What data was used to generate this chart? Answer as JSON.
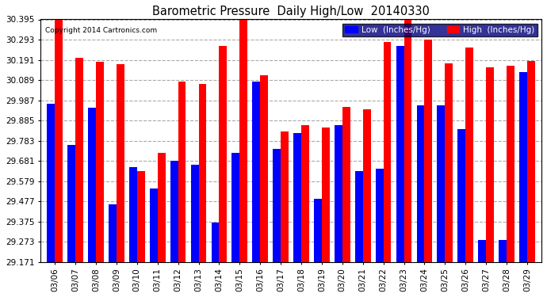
{
  "title": "Barometric Pressure  Daily High/Low  20140330",
  "copyright": "Copyright 2014 Cartronics.com",
  "dates": [
    "03/06",
    "03/07",
    "03/08",
    "03/09",
    "03/10",
    "03/11",
    "03/12",
    "03/13",
    "03/14",
    "03/15",
    "03/16",
    "03/17",
    "03/18",
    "03/19",
    "03/20",
    "03/21",
    "03/22",
    "03/23",
    "03/24",
    "03/25",
    "03/26",
    "03/27",
    "03/28",
    "03/29"
  ],
  "low": [
    29.97,
    29.76,
    29.95,
    29.46,
    29.65,
    29.54,
    29.68,
    29.66,
    29.37,
    29.72,
    30.08,
    29.74,
    29.82,
    29.49,
    29.86,
    29.63,
    29.64,
    30.26,
    29.96,
    29.96,
    29.84,
    29.28,
    29.28,
    30.13
  ],
  "high": [
    30.395,
    30.2,
    30.18,
    30.17,
    29.63,
    29.72,
    30.08,
    30.07,
    30.26,
    30.395,
    30.115,
    29.83,
    29.86,
    29.85,
    29.955,
    29.94,
    30.28,
    30.395,
    30.295,
    30.175,
    30.255,
    30.155,
    30.16,
    30.185
  ],
  "low_color": "#0000ff",
  "high_color": "#ff0000",
  "bg_color": "#ffffff",
  "grid_color": "#aaaaaa",
  "title_color": "#000000",
  "ymin": 29.171,
  "ymax": 30.395,
  "yticks": [
    29.171,
    29.273,
    29.375,
    29.477,
    29.579,
    29.681,
    29.783,
    29.885,
    29.987,
    30.089,
    30.191,
    30.293,
    30.395
  ]
}
